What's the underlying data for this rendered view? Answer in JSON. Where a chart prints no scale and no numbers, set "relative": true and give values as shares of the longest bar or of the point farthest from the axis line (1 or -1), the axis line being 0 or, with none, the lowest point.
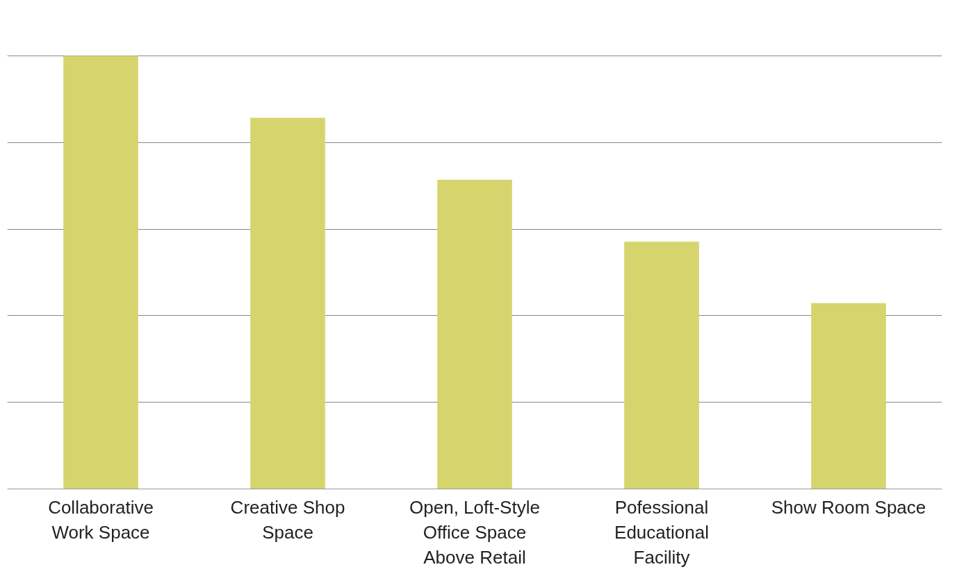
{
  "chart_data": {
    "type": "bar",
    "relative": true,
    "grid": "y",
    "categories": [
      "Collaborative Work Space",
      "Creative Shop Space",
      "Open, Loft-Style Office Space Above Retail",
      "Pofessional Educational Facility",
      "Show Room Space"
    ],
    "values": [
      1,
      0.857,
      0.714,
      0.571,
      0.429
    ],
    "color": "#d6d46c"
  }
}
